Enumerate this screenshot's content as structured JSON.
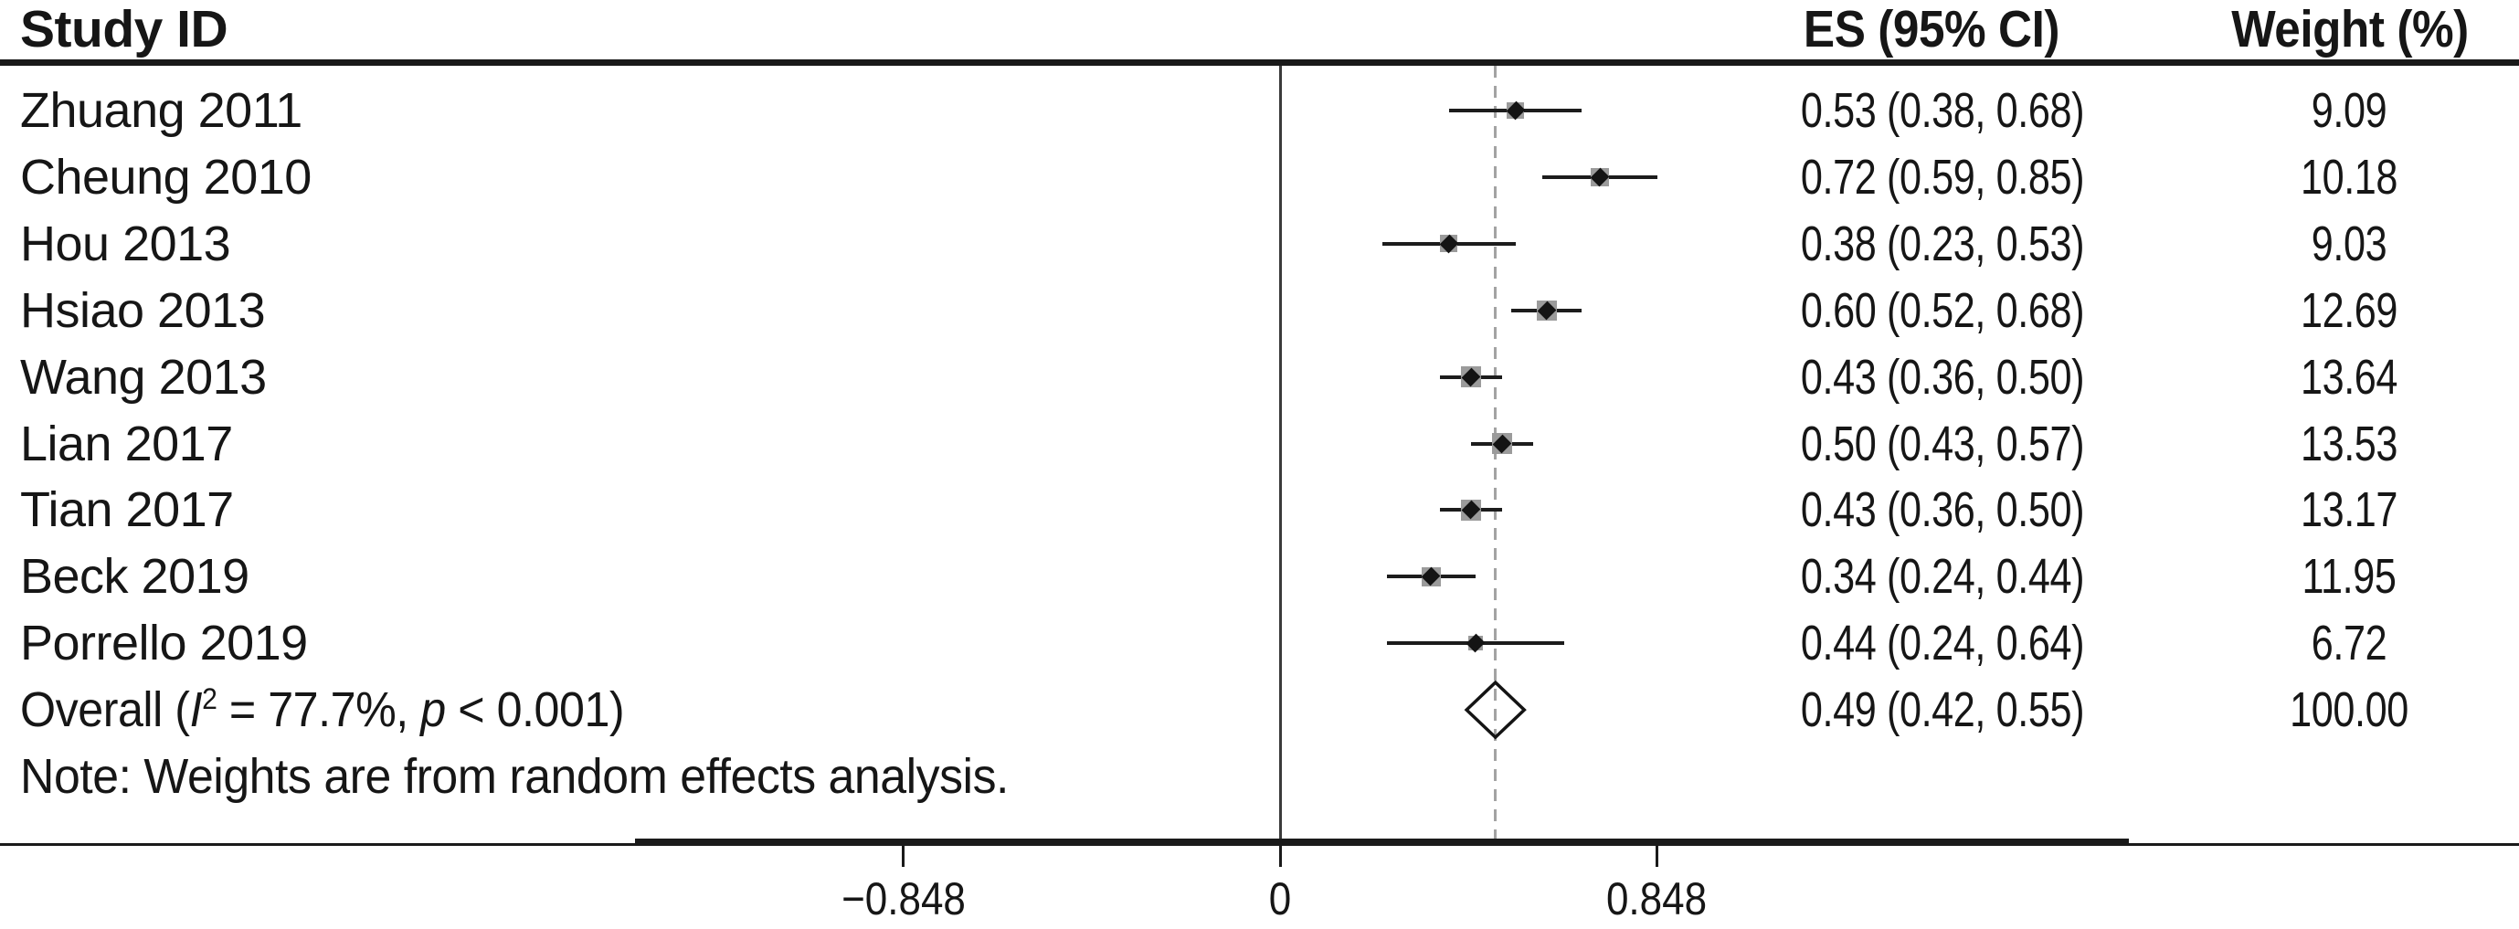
{
  "header": {
    "study_id": "Study ID",
    "es_ci": "ES (95% CI)",
    "weight": "Weight (%)"
  },
  "chart_data": {
    "type": "forest",
    "title": "",
    "xlabel": "",
    "x_axis": {
      "tick_values": [
        -0.848,
        0,
        0.848
      ],
      "tick_labels": [
        "−0.848",
        "0",
        "0.848"
      ],
      "zero_line": 0,
      "xlim": [
        -1.45,
        1.91
      ]
    },
    "studies": [
      {
        "label": "Zhuang 2011",
        "es": 0.53,
        "ci_low": 0.38,
        "ci_high": 0.68,
        "weight": 9.09,
        "es_ci_text": "0.53 (0.38, 0.68)",
        "weight_text": "9.09"
      },
      {
        "label": "Cheung 2010",
        "es": 0.72,
        "ci_low": 0.59,
        "ci_high": 0.85,
        "weight": 10.18,
        "es_ci_text": "0.72 (0.59, 0.85)",
        "weight_text": "10.18"
      },
      {
        "label": "Hou 2013",
        "es": 0.38,
        "ci_low": 0.23,
        "ci_high": 0.53,
        "weight": 9.03,
        "es_ci_text": "0.38 (0.23, 0.53)",
        "weight_text": "9.03"
      },
      {
        "label": "Hsiao 2013",
        "es": 0.6,
        "ci_low": 0.52,
        "ci_high": 0.68,
        "weight": 12.69,
        "es_ci_text": "0.60 (0.52, 0.68)",
        "weight_text": "12.69"
      },
      {
        "label": "Wang 2013",
        "es": 0.43,
        "ci_low": 0.36,
        "ci_high": 0.5,
        "weight": 13.64,
        "es_ci_text": "0.43 (0.36, 0.50)",
        "weight_text": "13.64"
      },
      {
        "label": "Lian 2017",
        "es": 0.5,
        "ci_low": 0.43,
        "ci_high": 0.57,
        "weight": 13.53,
        "es_ci_text": "0.50 (0.43, 0.57)",
        "weight_text": "13.53"
      },
      {
        "label": "Tian 2017",
        "es": 0.43,
        "ci_low": 0.36,
        "ci_high": 0.5,
        "weight": 13.17,
        "es_ci_text": "0.43 (0.36, 0.50)",
        "weight_text": "13.17"
      },
      {
        "label": "Beck 2019",
        "es": 0.34,
        "ci_low": 0.24,
        "ci_high": 0.44,
        "weight": 11.95,
        "es_ci_text": "0.34 (0.24, 0.44)",
        "weight_text": "11.95"
      },
      {
        "label": "Porrello 2019",
        "es": 0.44,
        "ci_low": 0.24,
        "ci_high": 0.64,
        "weight": 6.72,
        "es_ci_text": "0.44 (0.24, 0.64)",
        "weight_text": "6.72"
      }
    ],
    "overall": {
      "label_prefix": "Overall (",
      "i_symbol": "I",
      "i_superscript": "2",
      "label_middle": " = 77.7%, ",
      "p_symbol": "p",
      "label_suffix": " < 0.001)",
      "es": 0.49,
      "ci_low": 0.42,
      "ci_high": 0.55,
      "es_ci_text": "0.49 (0.42, 0.55)",
      "weight_text": "100.00"
    },
    "note": "Note: Weights are from random effects analysis."
  },
  "colors": {
    "text": "#161616",
    "rule": "#1a1a1a",
    "ci_line": "#1c1c1c",
    "weight_box": "#9b9b9b",
    "point_marker": "#141414",
    "pooled_dashed_line": "#a3a3a3",
    "zero_line": "#3a3a3a"
  }
}
